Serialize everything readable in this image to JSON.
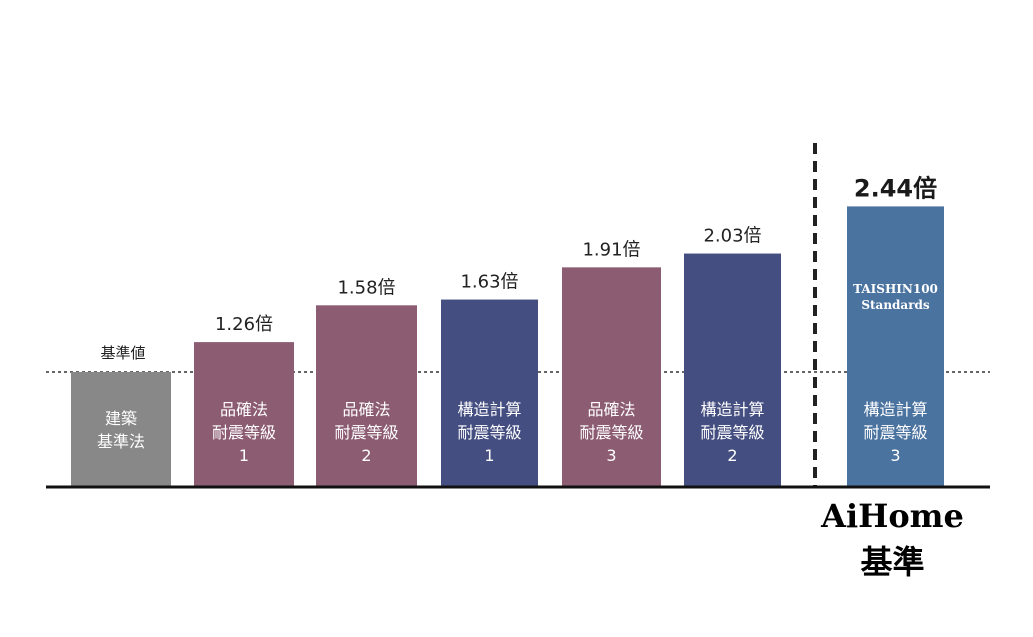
{
  "chart_data": {
    "type": "bar",
    "unit": "倍",
    "ylim": [
      0,
      2.6
    ],
    "baseline_label": "基準値",
    "baseline_value": 1.0,
    "bars": [
      {
        "lines": [
          "建築",
          "基準法"
        ],
        "value": 1.0,
        "value_label": "",
        "color": "#888888"
      },
      {
        "lines": [
          "品確法",
          "耐震等級",
          "1"
        ],
        "value": 1.26,
        "value_label": "1.26倍",
        "color": "#8c5c72"
      },
      {
        "lines": [
          "品確法",
          "耐震等級",
          "2"
        ],
        "value": 1.58,
        "value_label": "1.58倍",
        "color": "#8c5c72"
      },
      {
        "lines": [
          "構造計算",
          "耐震等級",
          "1"
        ],
        "value": 1.63,
        "value_label": "1.63倍",
        "color": "#444e80"
      },
      {
        "lines": [
          "品確法",
          "耐震等級",
          "3"
        ],
        "value": 1.91,
        "value_label": "1.91倍",
        "color": "#8c5c72"
      },
      {
        "lines": [
          "構造計算",
          "耐震等級",
          "2"
        ],
        "value": 2.03,
        "value_label": "2.03倍",
        "color": "#444e80"
      },
      {
        "lines": [
          "構造計算",
          "耐震等級",
          "3"
        ],
        "value": 2.44,
        "value_label": "2.44倍",
        "color": "#4b73a0",
        "inner_top_lines": [
          "TAISHIN100",
          "Standards"
        ],
        "highlight": true
      }
    ],
    "group_label_lines": [
      "AiHome",
      "基準"
    ]
  }
}
